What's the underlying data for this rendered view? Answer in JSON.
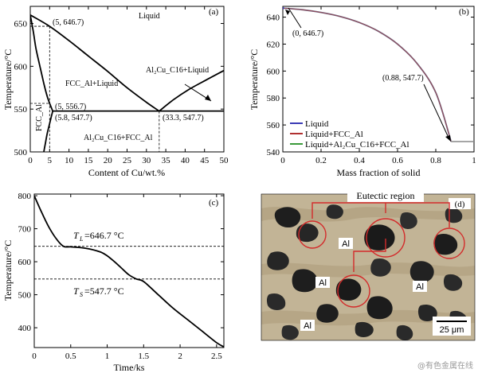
{
  "chart_data": [
    {
      "panel": "(a)",
      "type": "line",
      "xlabel": "Content of Cu/wt.%",
      "ylabel": "Temperature/°C",
      "xlim": [
        0,
        50
      ],
      "ylim": [
        500,
        670
      ],
      "xticks": [
        0,
        5,
        10,
        15,
        20,
        25,
        30,
        35,
        40,
        45,
        50
      ],
      "yticks": [
        500,
        550,
        600,
        650
      ],
      "series": [
        {
          "x": [
            0,
            5,
            10,
            15,
            20,
            25,
            30,
            33.3
          ],
          "y": [
            660,
            646.7,
            630,
            612,
            594,
            575,
            558,
            547.7
          ]
        },
        {
          "x": [
            33.3,
            37,
            41,
            45,
            50
          ],
          "y": [
            547.7,
            561,
            573,
            583,
            595
          ]
        },
        {
          "x": [
            5.8,
            50
          ],
          "y": [
            547.7,
            547.7
          ]
        },
        {
          "x": [
            0,
            0.8,
            1.5,
            2.5,
            3.5,
            4.5,
            5.8
          ],
          "y": [
            660,
            640,
            620,
            600,
            580,
            563,
            547.7
          ]
        },
        {
          "x": [
            5.8,
            5.1,
            4.4,
            3.9,
            3.5
          ],
          "y": [
            547.7,
            535,
            522,
            510,
            500
          ]
        }
      ],
      "regions": [
        "Liquid",
        "FCC_Al+Liquid",
        "FCC_Al",
        "Al₂Cu_C16+Liquid",
        "Al₂Cu_C16+FCC_Al"
      ],
      "annotations": [
        "(5, 646.7)",
        "(5, 556.7)",
        "(5.8, 547.7)",
        "(33.3, 547.7)"
      ]
    },
    {
      "panel": "(b)",
      "type": "line",
      "xlabel": "Mass fraction of solid",
      "ylabel": "Temperature/°C",
      "xlim": [
        0,
        1.0
      ],
      "ylim": [
        540,
        648
      ],
      "xticks": [
        0,
        0.2,
        0.4,
        0.6,
        0.8,
        1.0
      ],
      "yticks": [
        540,
        560,
        580,
        600,
        620,
        640
      ],
      "series": [
        {
          "name": "Liquid",
          "color": "#3b3bb5",
          "x": [
            0
          ],
          "y": [
            646.7
          ]
        },
        {
          "name": "Liquid+FCC_Al",
          "color": "#b03030",
          "x": [
            0,
            0.1,
            0.2,
            0.3,
            0.4,
            0.5,
            0.6,
            0.7,
            0.8,
            0.88
          ],
          "y": [
            646.7,
            645.5,
            643.5,
            640.5,
            636,
            629.5,
            620,
            606,
            584,
            547.7
          ]
        },
        {
          "name": "Liquid+Al₂Cu_C16+FCC_Al",
          "color": "#3a9a3a",
          "x": [
            0.88,
            1.0
          ],
          "y": [
            547.7,
            547.7
          ]
        }
      ],
      "annotations": [
        "(0, 646.7)",
        "(0.88, 547.7)"
      ]
    },
    {
      "panel": "(c)",
      "type": "line",
      "xlabel": "Time/ks",
      "ylabel": "Temperature/°C",
      "xlim": [
        0,
        2.6
      ],
      "ylim": [
        340,
        805
      ],
      "xticks": [
        0,
        0.5,
        1.0,
        1.5,
        2.0,
        2.5
      ],
      "yticks": [
        400,
        500,
        600,
        700,
        800
      ],
      "series": [
        {
          "x": [
            0,
            0.1,
            0.2,
            0.3,
            0.4,
            0.5,
            0.7,
            0.9,
            1.0,
            1.1,
            1.2,
            1.3,
            1.4,
            1.5,
            1.7,
            1.9,
            2.1,
            2.3,
            2.5,
            2.6
          ],
          "y": [
            800,
            750,
            705,
            670,
            646.7,
            645,
            641,
            630,
            618,
            600,
            580,
            560,
            547.7,
            540,
            500,
            460,
            425,
            390,
            355,
            342
          ]
        }
      ],
      "hlines": [
        646.7,
        547.7
      ],
      "annotations": [
        "T",
        "L",
        "=646.7 °C",
        "T",
        "S",
        "=547.7 °C"
      ]
    }
  ],
  "micrograph": {
    "panel": "(d)",
    "title": "Eutectic region",
    "labels": [
      "Al",
      "Al",
      "Al",
      "Al"
    ],
    "scalebar": "25 μm"
  },
  "watermark": "@有色金属在线"
}
